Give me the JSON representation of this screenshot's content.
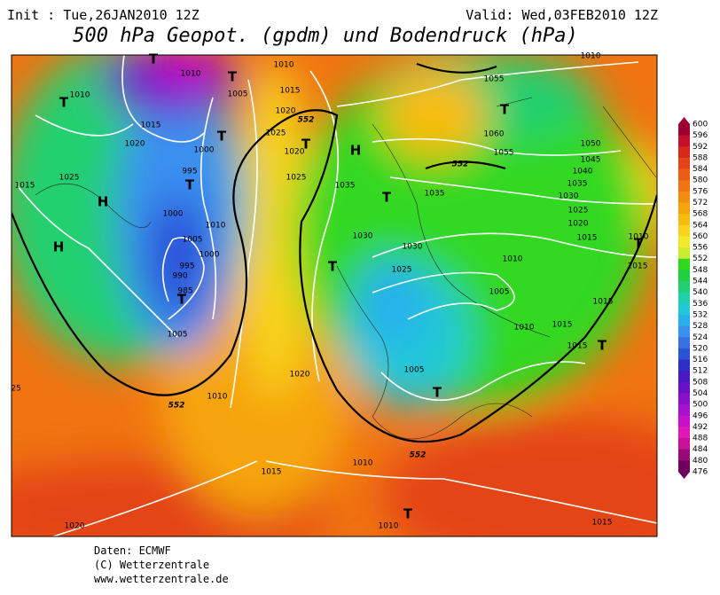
{
  "header": {
    "init": "Init : Tue,26JAN2010 12Z",
    "valid": "Valid: Wed,03FEB2010 12Z",
    "title": "500 hPa Geopot. (gpdm) und Bodendruck (hPa)"
  },
  "colorbar": {
    "labels": [
      600,
      596,
      592,
      588,
      584,
      580,
      576,
      572,
      568,
      564,
      560,
      556,
      552,
      548,
      544,
      540,
      536,
      532,
      528,
      524,
      520,
      516,
      512,
      508,
      504,
      500,
      496,
      492,
      488,
      484,
      480,
      476
    ],
    "colors": [
      "#9c0030",
      "#c4102c",
      "#d8281c",
      "#e44418",
      "#ec5c14",
      "#f07412",
      "#f48c10",
      "#f6a40e",
      "#f8bc10",
      "#f8d41c",
      "#f4e82c",
      "#c8ec30",
      "#30d820",
      "#20d040",
      "#20d070",
      "#20d0a8",
      "#20c8d8",
      "#28b0ee",
      "#3a90f0",
      "#3870e4",
      "#2c50d8",
      "#2c30c8",
      "#4818c4",
      "#6810c8",
      "#8810cc",
      "#a810d0",
      "#c810cc",
      "#e018b8",
      "#c81098",
      "#980878",
      "#700060"
    ]
  },
  "map": {
    "pressure_labels": [
      "1010",
      "1010",
      "1010",
      "1005",
      "1015",
      "1015",
      "1020",
      "1025",
      "1020",
      "1000",
      "1020",
      "1025",
      "995",
      "1025",
      "1015",
      "1035",
      "1000",
      "1010",
      "1005",
      "1000",
      "995",
      "990",
      "985",
      "1005",
      "1030",
      "1030",
      "1035",
      "1025",
      "1055",
      "1060",
      "1055",
      "1050",
      "1045",
      "1040",
      "1035",
      "1030",
      "1025",
      "1020",
      "1015",
      "1010",
      "1005",
      "1010",
      "1015",
      "1015",
      "1015",
      "1010",
      "1015",
      "1005",
      "1020",
      "1010",
      "1015",
      "1010",
      "1010",
      "1015",
      "1020",
      "25",
      "1010"
    ],
    "height_labels": [
      "552",
      "552",
      "552",
      "552"
    ],
    "centers": [
      "T",
      "T",
      "T",
      "T",
      "T",
      "H",
      "T",
      "T",
      "T",
      "H",
      "H",
      "T",
      "T",
      "T",
      "T",
      "T",
      "T"
    ]
  },
  "footer": {
    "source": "Daten: ECMWF",
    "copyright": "(C) Wetterzentrale",
    "url": "www.wetterzentrale.de"
  }
}
